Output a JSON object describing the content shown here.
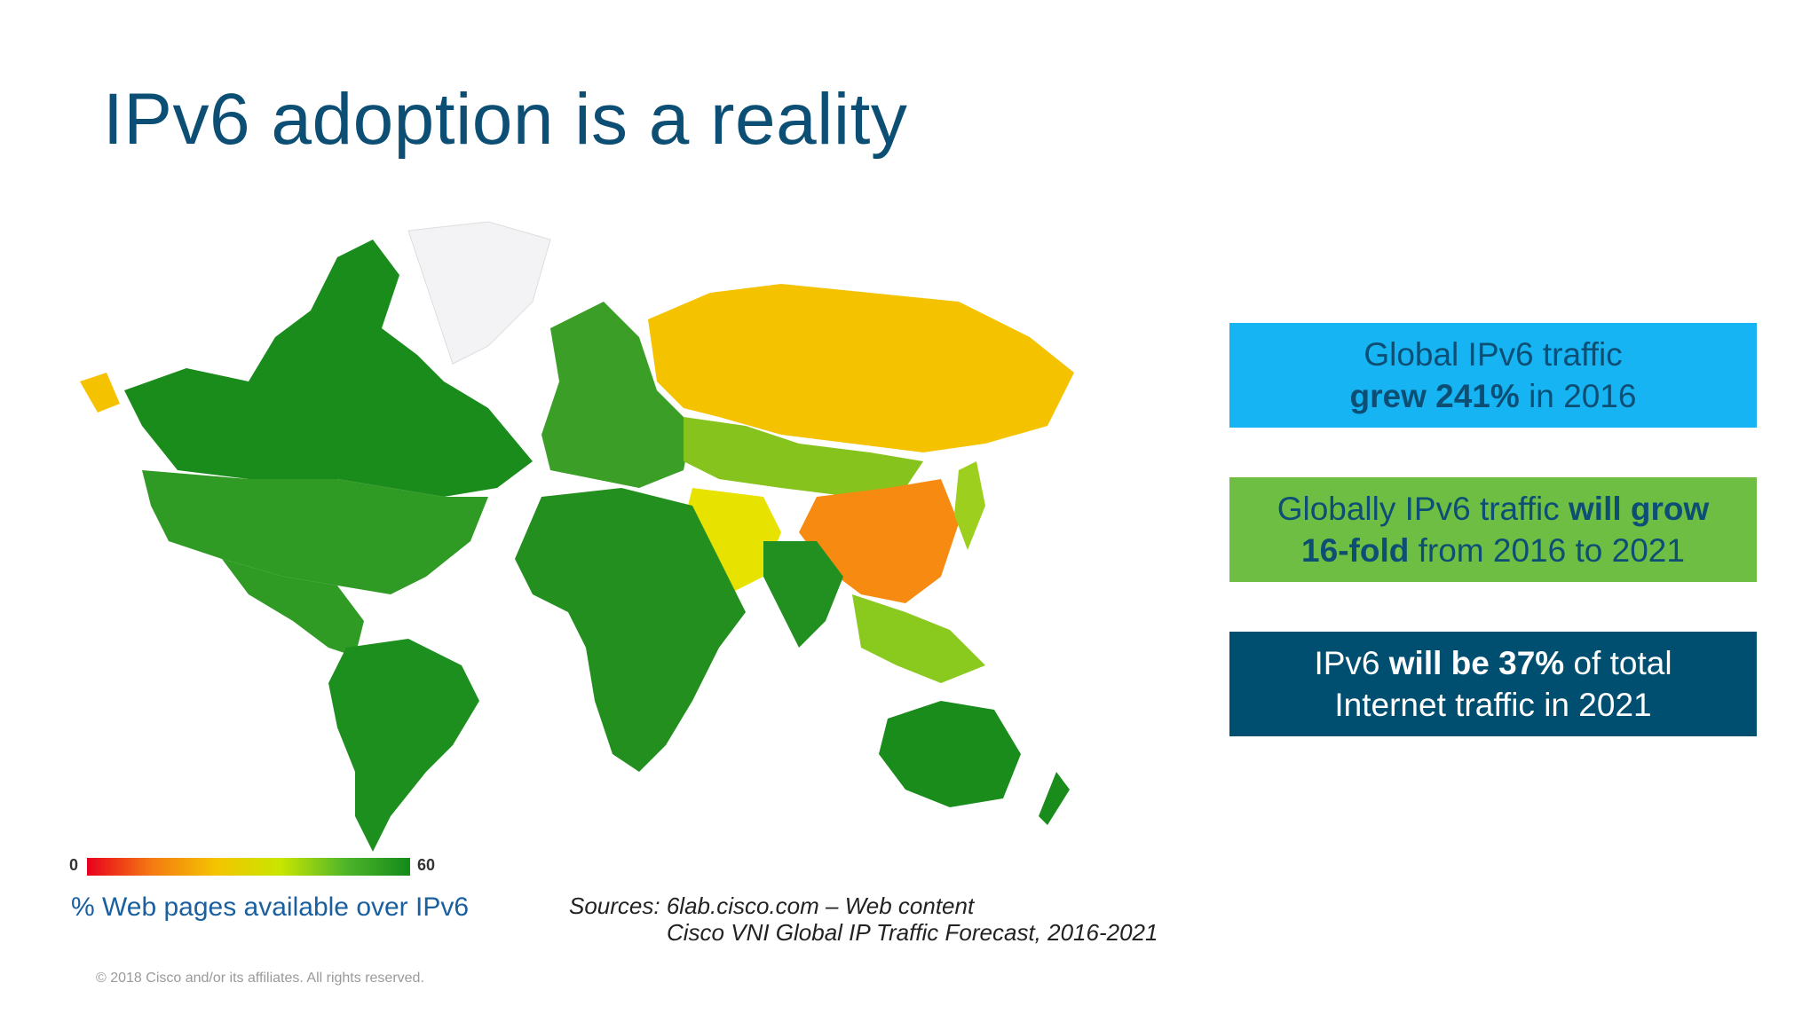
{
  "slide": {
    "title": "IPv6 adoption is a reality",
    "legend": {
      "min_label": "0",
      "max_label": "60",
      "caption": "% Web pages available over IPv6",
      "gradient_colors": [
        "#e8001c",
        "#f47a12",
        "#f4c400",
        "#c8e600",
        "#4fb52a",
        "#138a1a"
      ]
    },
    "sources": {
      "line1": "Sources: 6lab.cisco.com – Web content",
      "line2": "Cisco VNI Global IP Traffic Forecast, 2016-2021"
    },
    "copyright": "© 2018  Cisco and/or its affiliates. All rights reserved.",
    "callouts": [
      {
        "pre": "Global IPv6 traffic",
        "strong": "grew 241%",
        "post": " in 2016",
        "color": "#17b4f4"
      },
      {
        "pre": "Globally IPv6 traffic ",
        "strong": "will grow",
        "strong2": "16-fold",
        "post": " from 2016 to 2021",
        "color": "#6fbe44"
      },
      {
        "pre": "IPv6 ",
        "strong": "will be 37%",
        "post": " of total",
        "line2": "Internet traffic in 2021",
        "color": "#004f71"
      }
    ]
  },
  "map": {
    "regions": [
      {
        "name": "Canada",
        "color": "#1a8c1c"
      },
      {
        "name": "United States",
        "color": "#2f9a24"
      },
      {
        "name": "Mexico & Central America",
        "color": "#2f9a24"
      },
      {
        "name": "South America",
        "color": "#1d8f1e"
      },
      {
        "name": "Greenland",
        "color": "#f3f3f5"
      },
      {
        "name": "Europe",
        "color": "#3a9e27"
      },
      {
        "name": "Russia",
        "color": "#f5c200"
      },
      {
        "name": "Central Asia",
        "color": "#86c31c"
      },
      {
        "name": "China",
        "color": "#f78b12"
      },
      {
        "name": "Middle East",
        "color": "#e8e200"
      },
      {
        "name": "Africa",
        "color": "#228f1e"
      },
      {
        "name": "India",
        "color": "#219020"
      },
      {
        "name": "Southeast Asia",
        "color": "#8ac91e"
      },
      {
        "name": "Japan",
        "color": "#9ccf1e"
      },
      {
        "name": "Australia",
        "color": "#1a8c1c"
      }
    ]
  }
}
